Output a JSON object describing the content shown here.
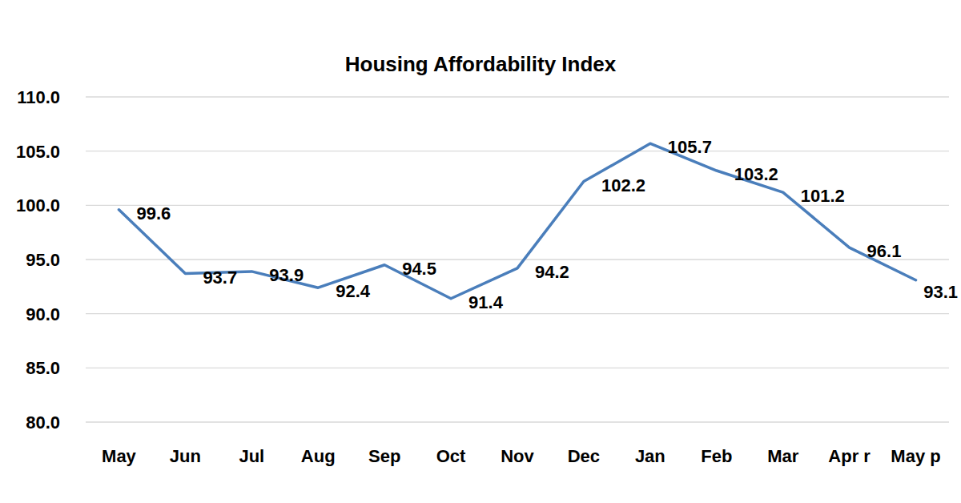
{
  "chart_data": {
    "type": "line",
    "title": "Housing Affordability Index",
    "categories": [
      "May",
      "Jun",
      "Jul",
      "Aug",
      "Sep",
      "Oct",
      "Nov",
      "Dec",
      "Jan",
      "Feb",
      "Mar",
      "Apr r",
      "May p"
    ],
    "values": [
      99.6,
      93.7,
      93.9,
      92.4,
      94.5,
      91.4,
      94.2,
      102.2,
      105.7,
      103.2,
      101.2,
      96.1,
      93.1
    ],
    "color": "#4a7ebb",
    "ylim": [
      80,
      110
    ],
    "yticks": [
      {
        "value": 80,
        "label": "80.0"
      },
      {
        "value": 85,
        "label": "85.0"
      },
      {
        "value": 90,
        "label": "90.0"
      },
      {
        "value": 95,
        "label": "95.0"
      },
      {
        "value": 100,
        "label": "100.0"
      },
      {
        "value": 105,
        "label": "105.0"
      },
      {
        "value": 110,
        "label": "110.0"
      }
    ],
    "grid": true,
    "data_labels": true
  }
}
